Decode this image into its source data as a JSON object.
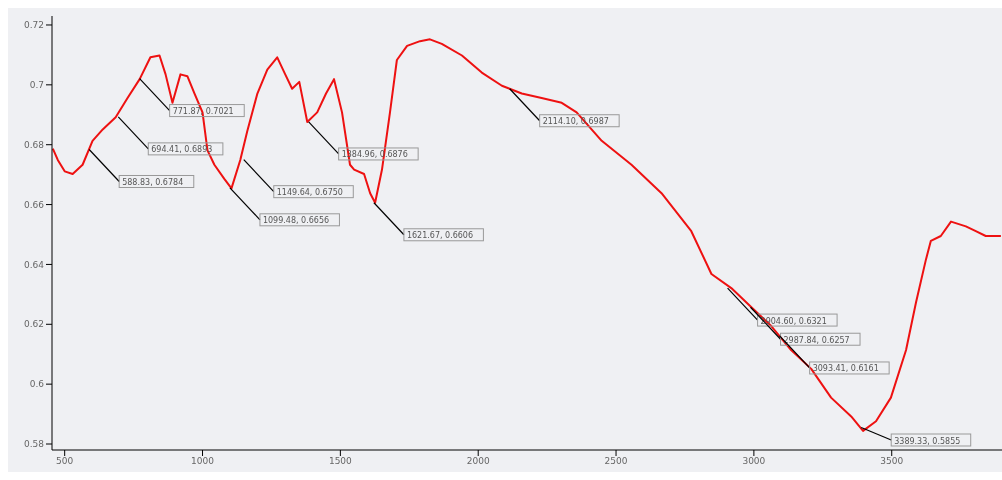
{
  "chart_data": {
    "type": "line",
    "x": [
      457,
      475,
      500,
      529,
      565,
      601,
      638,
      685,
      728,
      772,
      811,
      844,
      866,
      891,
      920,
      945,
      971,
      1000,
      1018,
      1043,
      1079,
      1105,
      1137,
      1162,
      1199,
      1235,
      1271,
      1300,
      1325,
      1351,
      1380,
      1416,
      1448,
      1477,
      1506,
      1535,
      1550,
      1586,
      1608,
      1626,
      1651,
      1680,
      1705,
      1742,
      1789,
      1825,
      1868,
      1941,
      2013,
      2086,
      2158,
      2230,
      2303,
      2357,
      2448,
      2556,
      2665,
      2773,
      2846,
      2918,
      2991,
      3063,
      3135,
      3208,
      3280,
      3353,
      3396,
      3443,
      3497,
      3552,
      3588,
      3624,
      3642,
      3678,
      3715,
      3769,
      3805,
      3841,
      3896
    ],
    "series": [
      {
        "color": "#ee1111",
        "values": [
          0.6787,
          0.6749,
          0.6711,
          0.6702,
          0.6733,
          0.6813,
          0.6851,
          0.6892,
          0.6956,
          0.7019,
          0.7092,
          0.7098,
          0.7035,
          0.694,
          0.7035,
          0.7029,
          0.6971,
          0.6908,
          0.6781,
          0.6733,
          0.6686,
          0.6654,
          0.6749,
          0.6844,
          0.6971,
          0.7051,
          0.7092,
          0.7035,
          0.6987,
          0.701,
          0.6876,
          0.6908,
          0.6971,
          0.7019,
          0.6908,
          0.6733,
          0.6717,
          0.6702,
          0.6638,
          0.6606,
          0.6717,
          0.6908,
          0.7083,
          0.713,
          0.7146,
          0.7152,
          0.7137,
          0.7098,
          0.7041,
          0.6997,
          0.6971,
          0.6956,
          0.694,
          0.6908,
          0.6813,
          0.6733,
          0.6638,
          0.6511,
          0.6368,
          0.6321,
          0.6257,
          0.6194,
          0.6114,
          0.6051,
          0.5955,
          0.5892,
          0.5844,
          0.5876,
          0.5955,
          0.6114,
          0.6273,
          0.6416,
          0.6479,
          0.6495,
          0.6543,
          0.6527,
          0.6511,
          0.6495,
          0.6495
        ]
      }
    ],
    "xlim": [
      454,
      3900
    ],
    "xticks": [
      500,
      1000,
      1500,
      2000,
      2500,
      3000,
      3500
    ],
    "ylim": [
      0.578,
      0.723
    ],
    "yticks": [
      0.58,
      0.6,
      0.62,
      0.64,
      0.66,
      0.68,
      0.7,
      0.72
    ],
    "grid": false,
    "legend": false,
    "marker": "none",
    "line_style": "solid",
    "annotations": [
      {
        "text": "588.83, 0.6784",
        "x": 588.83,
        "y": 0.6784
      },
      {
        "text": "694.41, 0.6893",
        "x": 694.41,
        "y": 0.6893
      },
      {
        "text": "771.87, 0.7021",
        "x": 771.87,
        "y": 0.7021
      },
      {
        "text": "1099.48, 0.6656",
        "x": 1099.48,
        "y": 0.6656
      },
      {
        "text": "1149.64, 0.6750",
        "x": 1149.64,
        "y": 0.675
      },
      {
        "text": "1384.96, 0.6876",
        "x": 1384.96,
        "y": 0.6876
      },
      {
        "text": "1621.67, 0.6606",
        "x": 1621.67,
        "y": 0.6606
      },
      {
        "text": "2114.10, 0.6987",
        "x": 2114.1,
        "y": 0.6987
      },
      {
        "text": "2904.60, 0.6321",
        "x": 2904.6,
        "y": 0.6321
      },
      {
        "text": "2987.84, 0.6257",
        "x": 2987.84,
        "y": 0.6257
      },
      {
        "text": "3093.41, 0.6161",
        "x": 3093.41,
        "y": 0.6161
      },
      {
        "text": "3389.33, 0.5855",
        "x": 3389.33,
        "y": 0.5855
      }
    ]
  }
}
